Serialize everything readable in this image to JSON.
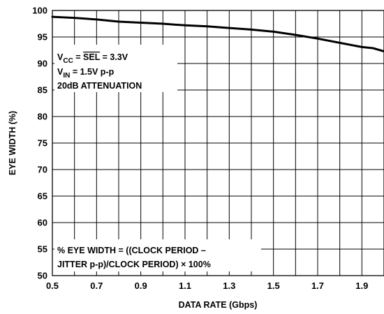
{
  "chart_data": {
    "type": "line",
    "title": "",
    "xlabel": "DATA RATE (Gbps)",
    "ylabel": "EYE WIDTH (%)",
    "xlim": [
      0.5,
      2.0
    ],
    "ylim": [
      50,
      100
    ],
    "x_ticks": [
      0.5,
      0.7,
      0.9,
      1.1,
      1.3,
      1.5,
      1.7,
      1.9
    ],
    "x_tick_labels": [
      "0.5",
      "0.7",
      "0.9",
      "1.1",
      "1.3",
      "1.5",
      "1.7",
      "1.9"
    ],
    "y_ticks": [
      50,
      55,
      60,
      65,
      70,
      75,
      80,
      85,
      90,
      95,
      100
    ],
    "y_tick_labels": [
      "50",
      "55",
      "60",
      "65",
      "70",
      "75",
      "80",
      "85",
      "90",
      "95",
      "100"
    ],
    "grid": true,
    "series": [
      {
        "x": [
          0.5,
          0.6,
          0.7,
          0.8,
          0.9,
          1.0,
          1.1,
          1.2,
          1.3,
          1.4,
          1.5,
          1.6,
          1.7,
          1.8,
          1.9,
          1.95,
          2.0
        ],
        "y": [
          98.8,
          98.6,
          98.3,
          97.9,
          97.7,
          97.5,
          97.2,
          97.0,
          96.7,
          96.4,
          96.0,
          95.4,
          94.7,
          93.9,
          93.1,
          92.9,
          92.3
        ]
      }
    ],
    "annotations": {
      "conditions": {
        "line1": {
          "pre": "V",
          "sub": "CC",
          "mid": " = ",
          "over": "SEL",
          "post": " = 3.3V"
        },
        "line2": {
          "pre": "V",
          "sub": "IN",
          "post": " = 1.5V p-p"
        },
        "line3": "20dB ATTENUATION"
      },
      "formula": {
        "line1": "% EYE WIDTH = ((CLOCK PERIOD –",
        "line2": "JITTER p-p)/CLOCK PERIOD) × 100%"
      }
    }
  }
}
